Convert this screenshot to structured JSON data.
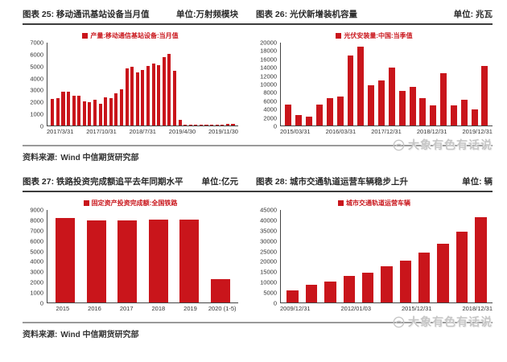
{
  "source": {
    "label": "资料来源:",
    "text": "Wind 中信期货研究部"
  },
  "watermark": {
    "text": "大象有色有话说"
  },
  "colors": {
    "bar": "#c9151b",
    "legend_text": "#c9151b",
    "rule_dark": "#3c3c3c",
    "rule_light": "#9a9a9a",
    "watermark_text": "#c6c6c6"
  },
  "chart_data": [
    {
      "type": "bar",
      "title": "图表 25: 移动通讯基站设备当月值",
      "unit_display": "单位:万射频模块",
      "legend": "产量:移动通信基站设备:当月值",
      "n_bars": 35,
      "values": [
        2250,
        2300,
        2850,
        2850,
        2500,
        2500,
        2050,
        1950,
        2150,
        1850,
        2400,
        2300,
        2700,
        3050,
        4800,
        4950,
        4500,
        4700,
        5000,
        5250,
        5100,
        5750,
        6050,
        4650,
        450,
        80,
        80,
        100,
        80,
        100,
        80,
        100,
        80,
        120,
        150
      ],
      "x_tick_labels": [
        "2017/3/31",
        "2017/10/31",
        "2018/7/31",
        "2019/4/30",
        "2019/11/30"
      ],
      "ylim": [
        0,
        7000
      ],
      "ystep": 1000,
      "x_mode": "spread",
      "grid": false,
      "legend_position": "top-center"
    },
    {
      "type": "bar",
      "title": "图表 26: 光伏新增装机容量",
      "unit_display": "单位: 兆瓦",
      "legend": "光伏安装量:中国:当季值",
      "n_bars": 20,
      "values": [
        5000,
        2600,
        2100,
        5000,
        6700,
        6900,
        16800,
        19000,
        9800,
        10900,
        13900,
        8300,
        9300,
        6600,
        4900,
        12600,
        4800,
        6200,
        3900,
        14300
      ],
      "x_tick_labels": [
        "2015/03/31",
        "2016/03/31",
        "2017/12/31",
        "2018/12/31",
        "2019/12/31"
      ],
      "ylim": [
        0,
        20000
      ],
      "ystep": 2000,
      "x_mode": "spread",
      "grid": false,
      "legend_position": "top-center"
    },
    {
      "type": "bar",
      "title": "图表 27: 铁路投资完成额追平去年同期水平",
      "unit_display": "单位:亿元",
      "legend": "固定资产投资完成额:全国铁路",
      "categories": [
        "2015",
        "2016",
        "2017",
        "2018",
        "2019",
        "2020 (1-5)"
      ],
      "values": [
        8250,
        8015,
        8010,
        8030,
        8030,
        2250
      ],
      "ylim": [
        0,
        9000
      ],
      "ystep": 1000,
      "x_mode": "per-bar",
      "grid": false,
      "legend_position": "top-center"
    },
    {
      "type": "bar",
      "title": "图表 28: 城市交通轨道运营车辆稳步上升",
      "unit_display": "单位: 辆",
      "legend": "城市交通轨道运营车辆",
      "n_bars": 11,
      "values": [
        5700,
        8600,
        10200,
        12900,
        14500,
        17600,
        20500,
        24200,
        28400,
        34600,
        41500
      ],
      "x_tick_labels": [
        "2009/12/31",
        "2012/01/03",
        "2015/12/31",
        "2018/12/31"
      ],
      "ylim": [
        0,
        45000
      ],
      "ystep": 5000,
      "x_mode": "spread",
      "grid": false,
      "legend_position": "top-center"
    }
  ]
}
